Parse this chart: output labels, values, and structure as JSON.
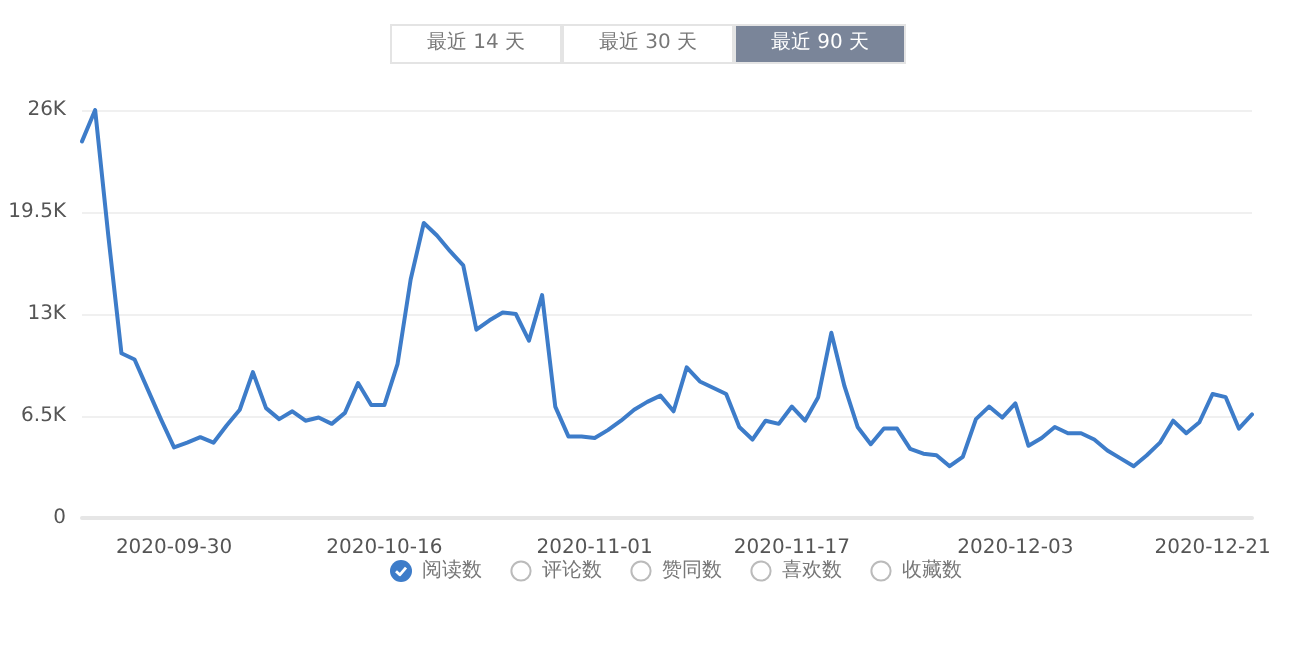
{
  "chart_data": {
    "type": "line",
    "categories": [
      null,
      null,
      null,
      null,
      null,
      null,
      null,
      "2020-09-30",
      null,
      null,
      null,
      null,
      null,
      null,
      null,
      null,
      null,
      null,
      null,
      null,
      null,
      null,
      null,
      "2020-10-16",
      null,
      null,
      null,
      null,
      null,
      null,
      null,
      null,
      null,
      null,
      null,
      null,
      null,
      null,
      null,
      "2020-11-01",
      null,
      null,
      null,
      null,
      null,
      null,
      null,
      null,
      null,
      null,
      null,
      null,
      null,
      null,
      "2020-11-17",
      null,
      null,
      null,
      null,
      null,
      null,
      null,
      null,
      null,
      null,
      null,
      null,
      null,
      null,
      null,
      null,
      "2020-12-03",
      null,
      null,
      null,
      null,
      null,
      null,
      null,
      null,
      null,
      null,
      null,
      null,
      null,
      null,
      "2020-12-21",
      null,
      null,
      null
    ],
    "series": [
      {
        "name": "阅读数",
        "color": "#3d7cc9",
        "values": [
          24000,
          26000,
          18000,
          10500,
          10100,
          8200,
          6300,
          4500,
          4800,
          5150,
          4800,
          5900,
          6900,
          9300,
          7000,
          6300,
          6800,
          6200,
          6400,
          6000,
          6700,
          8600,
          7200,
          7200,
          9800,
          15200,
          18800,
          18000,
          17000,
          16100,
          12000,
          12600,
          13100,
          13000,
          11300,
          14200,
          7100,
          5200,
          5200,
          5100,
          5600,
          6200,
          6900,
          7400,
          7800,
          6800,
          9600,
          8700,
          8300,
          7900,
          5800,
          5000,
          6200,
          6000,
          7100,
          6200,
          7700,
          11800,
          8400,
          5800,
          4700,
          5700,
          5700,
          4400,
          4100,
          4000,
          3300,
          3900,
          6300,
          7100,
          6400,
          7300,
          4600,
          5100,
          5800,
          5400,
          5400,
          5000,
          4300,
          3800,
          3300,
          4000,
          4800,
          6200,
          5400,
          6100,
          7900,
          7700,
          5700,
          6600
        ]
      }
    ],
    "ylim": [
      0,
      26000
    ],
    "yticks": [
      0,
      {
        "value": 6500,
        "label": "6.5K"
      },
      {
        "value": 13000,
        "label": "13K"
      },
      {
        "value": 19500,
        "label": "19.5K"
      },
      {
        "value": 26000,
        "label": "26K"
      }
    ],
    "grid": "y",
    "legend": "bottom",
    "marker": "none",
    "line_style": "solid",
    "annotations": [
      "最近 14 天",
      "最近 30 天",
      "最近 90 天",
      "评论数",
      "赞同数",
      "喜欢数",
      "收藏数"
    ]
  }
}
